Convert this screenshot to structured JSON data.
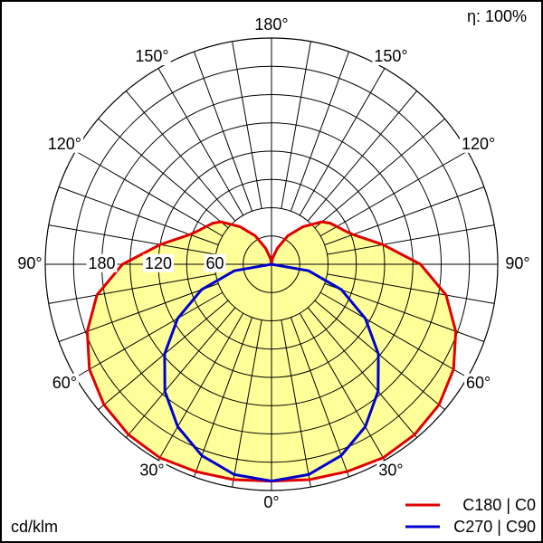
{
  "chart_data": {
    "type": "polar",
    "efficiency_label": "η: 100%",
    "unit_label": "cd/klm",
    "radial_range": [
      0,
      240
    ],
    "radial_ticks": [
      60,
      120,
      180
    ],
    "radial_tick_labels": [
      "60",
      "120",
      "180"
    ],
    "angle_labels": {
      "deg_0": "0°",
      "deg_30": "30°",
      "deg_60": "60°",
      "deg_90": "90°",
      "deg_120": "120°",
      "deg_150": "150°",
      "deg_180": "180°"
    },
    "series": [
      {
        "name": "C180 | C0",
        "color": "#e00000",
        "fill": "#ffff99",
        "angles": [
          0,
          10,
          20,
          30,
          40,
          50,
          60,
          70,
          80,
          90,
          100,
          110,
          115,
          120,
          125,
          130,
          140,
          150,
          160,
          170,
          180
        ],
        "values": [
          230,
          232,
          234,
          237,
          236,
          232,
          223,
          208,
          188,
          158,
          120,
          92,
          85,
          80,
          76,
          70,
          52,
          35,
          18,
          6,
          0
        ]
      },
      {
        "name": "C270 | C90",
        "color": "#0000cc",
        "angles": [
          0,
          10,
          20,
          30,
          40,
          50,
          60,
          70,
          80,
          90,
          100,
          110,
          120,
          130,
          140,
          150,
          160,
          170,
          180
        ],
        "values": [
          230,
          226.5,
          216,
          199,
          176,
          148,
          115,
          79,
          40,
          0,
          0,
          0,
          0,
          0,
          0,
          0,
          0,
          0,
          0
        ]
      }
    ],
    "legend_position": "bottom-right",
    "grid": true
  }
}
